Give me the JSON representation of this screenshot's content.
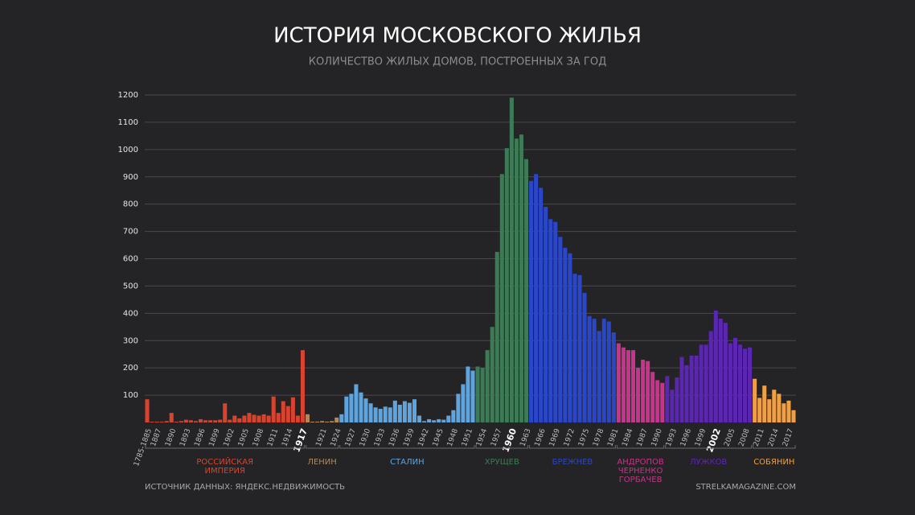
{
  "chart_data": {
    "type": "bar",
    "title": "ИСТОРИЯ МОСКОВСКОГО ЖИЛЬЯ",
    "subtitle": "КОЛИЧЕСТВО ЖИЛЫХ ДОМОВ, ПОСТРОЕННЫХ ЗА ГОД",
    "source": "ИСТОЧНИК ДАННЫХ: ЯНДЕКС.НЕДВИЖИМОСТЬ",
    "credit": "STRELKAMAGAZINE.COM",
    "ylim": [
      0,
      1200
    ],
    "yticks": [
      100,
      200,
      300,
      400,
      500,
      600,
      700,
      800,
      900,
      1000,
      1100,
      1200
    ],
    "grid": true,
    "highlight": [
      "1917",
      "1960",
      "2002"
    ],
    "series": [
      {
        "name": "РОССИЙСКАЯ ИМПЕРИЯ",
        "color": "#d9432e",
        "categories": [
          "1785-1885",
          null,
          "1887",
          null,
          null,
          "1890",
          null,
          null,
          "1893",
          null,
          null,
          "1896",
          null,
          null,
          "1899",
          null,
          null,
          "1902",
          null,
          null,
          "1905",
          null,
          null,
          "1908",
          null,
          null,
          "1911",
          null,
          null,
          "1914",
          null,
          null,
          "1917"
        ],
        "values": [
          85,
          3,
          3,
          3,
          5,
          35,
          3,
          5,
          10,
          8,
          5,
          12,
          8,
          8,
          8,
          10,
          70,
          10,
          25,
          15,
          25,
          35,
          28,
          25,
          30,
          25,
          95,
          35,
          78,
          60,
          92,
          25,
          265
        ]
      },
      {
        "name": "ЛЕНИН",
        "color": "#b3895a",
        "categories": [
          null,
          null,
          null,
          "1921",
          null,
          null,
          "1924"
        ],
        "values": [
          30,
          3,
          3,
          5,
          3,
          5,
          18
        ]
      },
      {
        "name": "СТАЛИН",
        "color": "#5ea4de",
        "categories": [
          null,
          null,
          "1927",
          null,
          null,
          "1930",
          null,
          null,
          "1933",
          null,
          null,
          "1936",
          null,
          null,
          "1939",
          null,
          null,
          "1942",
          null,
          null,
          "1945",
          null,
          null,
          "1948",
          null,
          null,
          "1951",
          null
        ],
        "values": [
          30,
          95,
          105,
          140,
          110,
          88,
          70,
          55,
          50,
          58,
          55,
          80,
          65,
          78,
          72,
          85,
          25,
          5,
          12,
          8,
          12,
          10,
          25,
          45,
          105,
          140,
          205,
          190
        ]
      },
      {
        "name": "ХРУЩЕВ",
        "color": "#3f7a56",
        "categories": [
          null,
          "1954",
          null,
          null,
          "1957",
          null,
          null,
          "1960",
          null,
          null,
          "1963"
        ],
        "values": [
          205,
          200,
          265,
          350,
          625,
          910,
          1005,
          1190,
          1040,
          1055,
          965
        ]
      },
      {
        "name": "БРЕЖНЕВ",
        "color": "#2a46c9",
        "categories": [
          null,
          null,
          "1966",
          null,
          null,
          "1969",
          null,
          null,
          "1972",
          null,
          null,
          "1975",
          null,
          null,
          "1978",
          null,
          null,
          "1981"
        ],
        "values": [
          885,
          910,
          860,
          790,
          745,
          735,
          680,
          640,
          620,
          545,
          540,
          475,
          390,
          380,
          335,
          380,
          370,
          330
        ]
      },
      {
        "name": "АНДРОПОВ\nЧЕРНЕНКО\nГОРБАЧЕВ",
        "color": "#c8338b",
        "categories": [
          null,
          null,
          "1984",
          null,
          null,
          "1987",
          null,
          null,
          "1990",
          null
        ],
        "values": [
          290,
          275,
          265,
          265,
          200,
          230,
          225,
          185,
          155,
          145
        ]
      },
      {
        "name": "ЛУЖКОВ",
        "color": "#5a26b2",
        "categories": [
          null,
          "1993",
          null,
          null,
          "1996",
          null,
          null,
          "1999",
          null,
          null,
          "2002",
          null,
          null,
          "2005",
          null,
          null,
          "2008",
          null
        ],
        "values": [
          170,
          120,
          165,
          240,
          210,
          245,
          245,
          285,
          285,
          335,
          410,
          380,
          365,
          290,
          310,
          285,
          270,
          275
        ]
      },
      {
        "name": "СОБЯНИН",
        "color": "#f0a044",
        "categories": [
          null,
          "2011",
          null,
          null,
          "2014",
          null,
          null,
          "2017",
          null
        ],
        "values": [
          160,
          90,
          135,
          85,
          120,
          105,
          70,
          80,
          45
        ]
      }
    ]
  }
}
